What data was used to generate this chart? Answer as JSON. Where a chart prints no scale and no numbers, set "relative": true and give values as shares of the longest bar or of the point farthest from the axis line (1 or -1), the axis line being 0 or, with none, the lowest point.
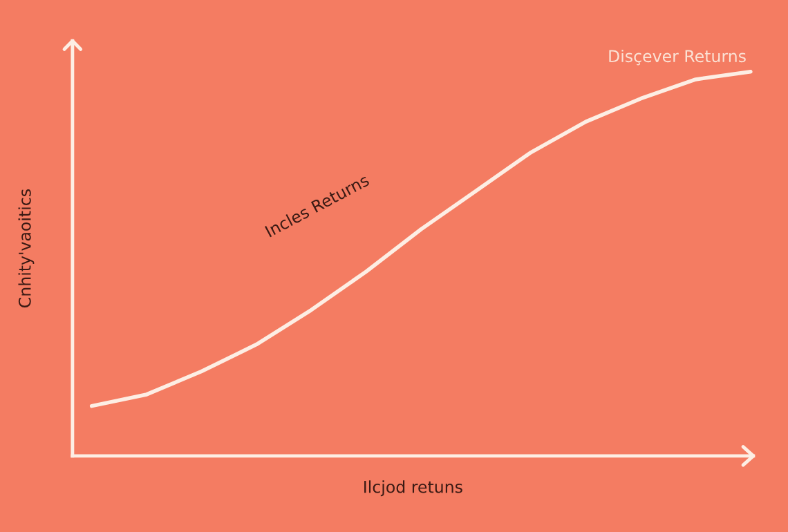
{
  "chart_data": {
    "type": "line",
    "relative": true,
    "xlabel": "Ilcjod retuns",
    "ylabel": "Cnhity'vaoitics",
    "categories": [
      null,
      null,
      null,
      null,
      null,
      null,
      null,
      null,
      null,
      null,
      null,
      null,
      null
    ],
    "series": [
      {
        "color": "#fdeee4",
        "values": [
          0.13,
          0.16,
          0.22,
          0.29,
          0.38,
          0.48,
          0.59,
          0.69,
          0.79,
          0.87,
          0.93,
          0.98,
          1.0
        ]
      }
    ],
    "annotations": [
      "Incles Returns",
      "Disçever Returns"
    ],
    "grid": false,
    "legend": false,
    "marker": "none",
    "line_style": "solid"
  }
}
